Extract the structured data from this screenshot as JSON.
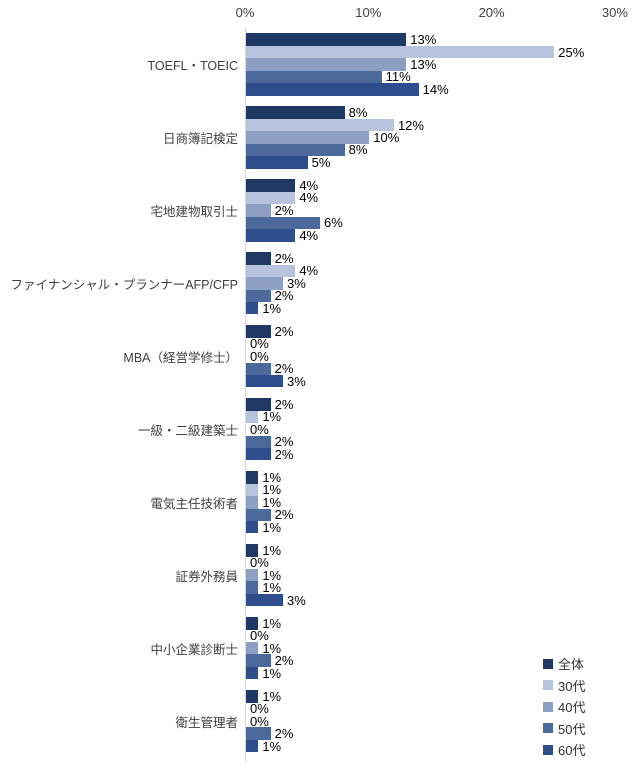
{
  "chart_data": {
    "type": "bar",
    "orientation": "horizontal",
    "title": "",
    "value_suffix": "%",
    "categories": [
      "TOEFL・TOEIC",
      "日商簿記検定",
      "宅地建物取引士",
      "ファイナンシャル・プランナーAFP/CFP",
      "MBA（経営学修士）",
      "一級・二級建築士",
      "電気主任技術者",
      "証券外務員",
      "中小企業診断士",
      "衛生管理者"
    ],
    "series": [
      {
        "name": "全体",
        "color": "#1F3864",
        "values": [
          13,
          8,
          4,
          2,
          2,
          2,
          1,
          1,
          1,
          1
        ]
      },
      {
        "name": "30代",
        "color": "#B8C4DE",
        "values": [
          25,
          12,
          4,
          4,
          0,
          1,
          1,
          0,
          0,
          0
        ]
      },
      {
        "name": "40代",
        "color": "#8D9FC3",
        "values": [
          13,
          10,
          2,
          3,
          0,
          0,
          1,
          1,
          1,
          0
        ]
      },
      {
        "name": "50代",
        "color": "#4C699C",
        "values": [
          11,
          8,
          6,
          2,
          2,
          2,
          2,
          1,
          2,
          2
        ]
      },
      {
        "name": "60代",
        "color": "#2E4D8D",
        "values": [
          14,
          5,
          4,
          1,
          3,
          2,
          1,
          3,
          1,
          1
        ]
      }
    ],
    "x_axis": {
      "ticks": [
        "0%",
        "10%",
        "20%",
        "30%"
      ],
      "tick_values": [
        0,
        10,
        20,
        30
      ],
      "min": 0,
      "max": 30,
      "gridlines": false
    },
    "legend": {
      "position": "bottom-right",
      "entries": [
        "全体",
        "30代",
        "40代",
        "50代",
        "60代"
      ]
    }
  }
}
